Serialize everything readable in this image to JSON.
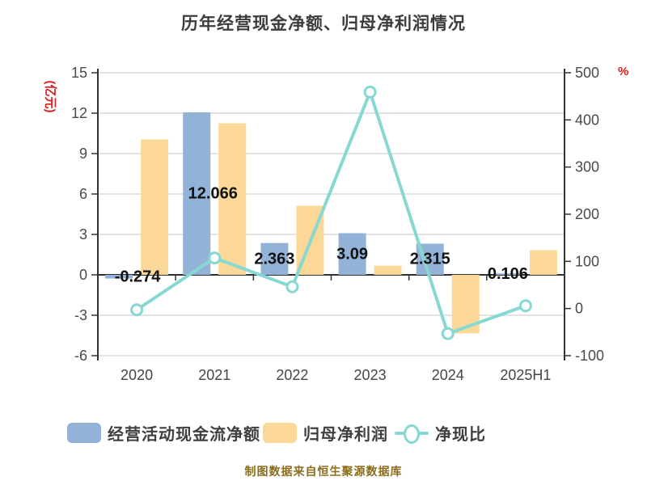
{
  "watermark": "制图数据来自恒生聚源数据库",
  "chart_data": {
    "type": "bar+line combo",
    "title": "历年经营现金净额、归母净利润情况",
    "categories": [
      "2020",
      "2021",
      "2022",
      "2023",
      "2024",
      "2025H1"
    ],
    "series": [
      {
        "name": "经营活动现金流净额",
        "type": "bar",
        "axis": "left",
        "color": "#92b2d8",
        "values": [
          -0.274,
          12.066,
          2.363,
          3.09,
          2.315,
          0.106
        ],
        "labels": [
          "-0.274",
          "12.066",
          "2.363",
          "3.09",
          "2.315",
          "0.106"
        ]
      },
      {
        "name": "归母净利润",
        "type": "bar",
        "axis": "left",
        "color": "#fbd897",
        "values": [
          10.05,
          11.25,
          5.13,
          0.68,
          -4.35,
          1.83
        ]
      },
      {
        "name": "净现比",
        "type": "line",
        "axis": "right",
        "color": "#87d8d2",
        "marker": "circle-white",
        "values": [
          -2.7,
          107.3,
          46.1,
          459,
          -53.2,
          5.8
        ]
      }
    ],
    "left_axis": {
      "name": "(亿元)",
      "name_color": "#e01a1a",
      "min": -6,
      "max": 15,
      "ticks": [
        15,
        12,
        9,
        6,
        3,
        0,
        -3,
        -6
      ]
    },
    "right_axis": {
      "name": "%",
      "name_color": "#e01a1a",
      "min": -100,
      "max": 500,
      "ticks": [
        500,
        400,
        300,
        200,
        100,
        0,
        -100
      ]
    },
    "grid": true,
    "legend_position": "bottom"
  }
}
